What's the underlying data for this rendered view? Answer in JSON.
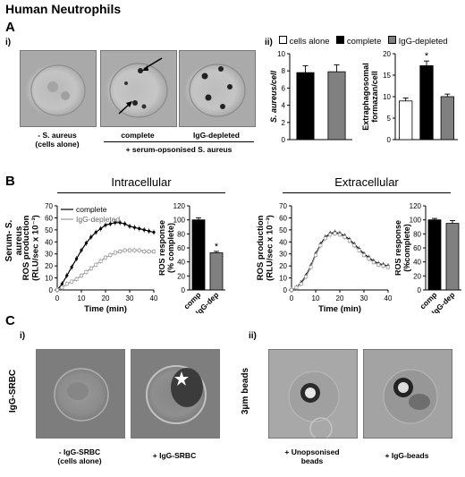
{
  "title": "Human Neutrophils",
  "panelA": {
    "letter": "A",
    "sub_i": "i)",
    "sub_ii": "ii)",
    "captions": {
      "alone_line1": "- S. aureus",
      "alone_line2": "(cells alone)",
      "complete": "complete",
      "igg": "IgG-depleted",
      "group": "+ serum-opsonised S. aureus"
    },
    "legend": [
      "cells alone",
      "complete",
      "IgG-depleted"
    ]
  },
  "panelB": {
    "letter": "B",
    "intra_title": "Intracellular",
    "extra_title": "Extracellular",
    "row_label": "Serum- S. aureus"
  },
  "panelC": {
    "letter": "C",
    "sub_i": "i)",
    "sub_ii": "ii)",
    "row_label_i": "IgG-SRBC",
    "row_label_ii": "3μm beads",
    "captions": {
      "srbc_alone_line1": "- IgG-SRBC",
      "srbc_alone_line2": "(cells alone)",
      "srbc": "+ IgG-SRBC",
      "unops_line1": "+ Unopsonised",
      "unops_line2": "beads",
      "iggbeads": "+ IgG-beads"
    }
  },
  "chart_data": [
    {
      "id": "A_saureus_per_cell",
      "type": "bar",
      "ylabel": "S. aureus/cell",
      "ylim": [
        0,
        10
      ],
      "yticks": [
        0,
        2,
        4,
        6,
        8,
        10
      ],
      "categories": [
        "complete",
        "IgG-depleted"
      ],
      "values": [
        7.8,
        7.9
      ],
      "errors": [
        0.8,
        0.8
      ],
      "colors": [
        "#000000",
        "#808080"
      ]
    },
    {
      "id": "A_formazan_per_cell",
      "type": "bar",
      "ylabel": "Extraphagosomal formazan/cell",
      "ylim": [
        0,
        20
      ],
      "yticks": [
        0,
        5,
        10,
        15,
        20
      ],
      "categories": [
        "cells alone",
        "complete",
        "IgG-depleted"
      ],
      "values": [
        9,
        17.2,
        10
      ],
      "errors": [
        0.7,
        1.1,
        0.6
      ],
      "colors": [
        "#ffffff",
        "#000000",
        "#808080"
      ],
      "annotations": [
        "",
        "*",
        ""
      ]
    },
    {
      "id": "B_intra_line",
      "type": "line",
      "xlabel": "Time (min)",
      "ylabel": "ROS production (RLU/sec x 10⁻³)",
      "xlim": [
        0,
        40
      ],
      "ylim": [
        0,
        70
      ],
      "xticks": [
        0,
        10,
        20,
        30,
        40
      ],
      "yticks": [
        0,
        10,
        20,
        30,
        40,
        50,
        60,
        70
      ],
      "legend": "top-left",
      "x": [
        0,
        2,
        4,
        6,
        8,
        10,
        12,
        14,
        16,
        18,
        20,
        22,
        24,
        26,
        28,
        30,
        32,
        34,
        36,
        38,
        40
      ],
      "series": [
        {
          "name": "complete",
          "color": "#000000",
          "values": [
            0,
            5,
            12,
            19,
            26,
            33,
            39,
            44,
            48,
            51,
            54,
            55,
            56,
            56,
            55,
            53,
            52,
            51,
            50,
            49,
            48
          ]
        },
        {
          "name": "IgG-depleted",
          "color": "#999999",
          "values": [
            0,
            2,
            5,
            7,
            9,
            12,
            15,
            18,
            21,
            24,
            27,
            29,
            31,
            32,
            33,
            33,
            33,
            33,
            32,
            32,
            32
          ]
        }
      ]
    },
    {
      "id": "B_intra_bar",
      "type": "bar",
      "ylabel": "ROS response (% complete)",
      "ylim": [
        0,
        120
      ],
      "yticks": [
        0,
        20,
        40,
        60,
        80,
        100,
        120
      ],
      "categories": [
        "comp",
        "IgG-dep"
      ],
      "values": [
        100,
        53
      ],
      "errors": [
        3,
        2
      ],
      "colors": [
        "#000000",
        "#808080"
      ],
      "annotations": [
        "",
        "*"
      ]
    },
    {
      "id": "B_extra_line",
      "type": "line",
      "xlabel": "Time (min)",
      "ylabel": "ROS production (RLU/sec x 10⁻³)",
      "xlim": [
        0,
        40
      ],
      "ylim": [
        0,
        70
      ],
      "xticks": [
        0,
        10,
        20,
        30,
        40
      ],
      "yticks": [
        0,
        10,
        20,
        30,
        40,
        50,
        60,
        70
      ],
      "x": [
        0,
        2,
        4,
        6,
        8,
        10,
        12,
        14,
        16,
        18,
        20,
        22,
        24,
        26,
        28,
        30,
        32,
        34,
        36,
        38,
        40
      ],
      "series": [
        {
          "name": "complete",
          "color": "#000000",
          "values": [
            0,
            2,
            6,
            12,
            20,
            30,
            38,
            44,
            47,
            48,
            47,
            45,
            42,
            38,
            34,
            30,
            27,
            24,
            22,
            21,
            20
          ]
        },
        {
          "name": "IgG-depleted",
          "color": "#999999",
          "values": [
            0,
            2,
            5,
            11,
            19,
            29,
            37,
            43,
            46,
            47,
            46,
            44,
            41,
            37,
            33,
            29,
            26,
            23,
            21,
            20,
            19
          ]
        }
      ]
    },
    {
      "id": "B_extra_bar",
      "type": "bar",
      "ylabel": "ROS response (%complete)",
      "ylim": [
        0,
        120
      ],
      "yticks": [
        0,
        20,
        40,
        60,
        80,
        100,
        120
      ],
      "categories": [
        "comp",
        "IgG-dep"
      ],
      "values": [
        100,
        95
      ],
      "errors": [
        2,
        4
      ],
      "colors": [
        "#000000",
        "#808080"
      ]
    }
  ]
}
